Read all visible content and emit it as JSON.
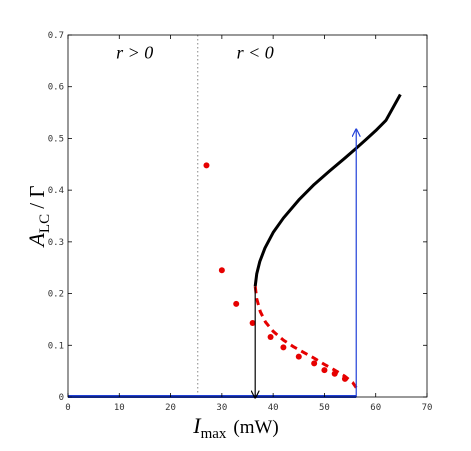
{
  "chart_data": {
    "type": "scatter",
    "title": "",
    "xlabel": {
      "main": "I",
      "subscript": "max",
      "unit": "(mW)"
    },
    "ylabel": {
      "main": "A",
      "subscript": "LC",
      "rest": " / Γ"
    },
    "xlim": [
      0,
      70
    ],
    "ylim": [
      0,
      0.7
    ],
    "xticks": [
      "0",
      "10",
      "20",
      "30",
      "40",
      "50",
      "60",
      "70"
    ],
    "yticks": [
      "0",
      "0.1",
      "0.2",
      "0.3",
      "0.4",
      "0.5",
      "0.6",
      "0.7"
    ],
    "xtick_values": [
      0,
      10,
      20,
      30,
      40,
      50,
      60,
      70
    ],
    "ytick_values": [
      0,
      0.1,
      0.2,
      0.3,
      0.4,
      0.5,
      0.6,
      0.7
    ],
    "grid": false,
    "annotations": {
      "left_region": "r > 0",
      "right_region": "r < 0"
    },
    "vertical_reference": {
      "x": 25.3,
      "style": "dotted",
      "color": "#888888"
    },
    "series": [
      {
        "kind": "line",
        "style": "solid",
        "color": "#000000",
        "x": [
          36.5,
          36.8,
          37.4,
          38.4,
          40.0,
          42.0,
          45.0,
          48.0,
          51.0,
          54.0,
          56.2,
          58.0,
          60.0,
          62.0,
          64.8
        ],
        "y": [
          0.214,
          0.238,
          0.262,
          0.288,
          0.318,
          0.346,
          0.381,
          0.411,
          0.437,
          0.462,
          0.481,
          0.497,
          0.515,
          0.535,
          0.585
        ]
      },
      {
        "kind": "line",
        "style": "dashed",
        "color": "#e60000",
        "x": [
          36.5,
          36.8,
          37.5,
          38.5,
          40.0,
          42.0,
          44.0,
          46.0,
          48.0,
          50.0,
          52.0,
          54.0,
          55.5,
          56.2
        ],
        "y": [
          0.214,
          0.19,
          0.165,
          0.145,
          0.127,
          0.11,
          0.097,
          0.086,
          0.075,
          0.063,
          0.052,
          0.04,
          0.028,
          0.018
        ]
      },
      {
        "kind": "scatter",
        "color": "#e60000",
        "x": [
          27.0,
          30.0,
          32.8,
          36.0,
          39.5,
          42.0,
          45.0,
          48.0,
          50.0,
          52.0,
          54.0
        ],
        "y": [
          0.448,
          0.245,
          0.18,
          0.143,
          0.116,
          0.096,
          0.078,
          0.065,
          0.052,
          0.045,
          0.035
        ]
      },
      {
        "kind": "line",
        "style": "solid",
        "color": "#1f3fd8",
        "x": [
          0,
          56.2
        ],
        "y": [
          0.001,
          0.001
        ]
      },
      {
        "kind": "arrow",
        "color": "#000000",
        "from": [
          36.5,
          0.214
        ],
        "to": [
          36.5,
          0.0
        ]
      },
      {
        "kind": "arrow",
        "color": "#1f3fd8",
        "from": [
          56.2,
          0.0
        ],
        "to": [
          56.2,
          0.516
        ]
      }
    ]
  }
}
